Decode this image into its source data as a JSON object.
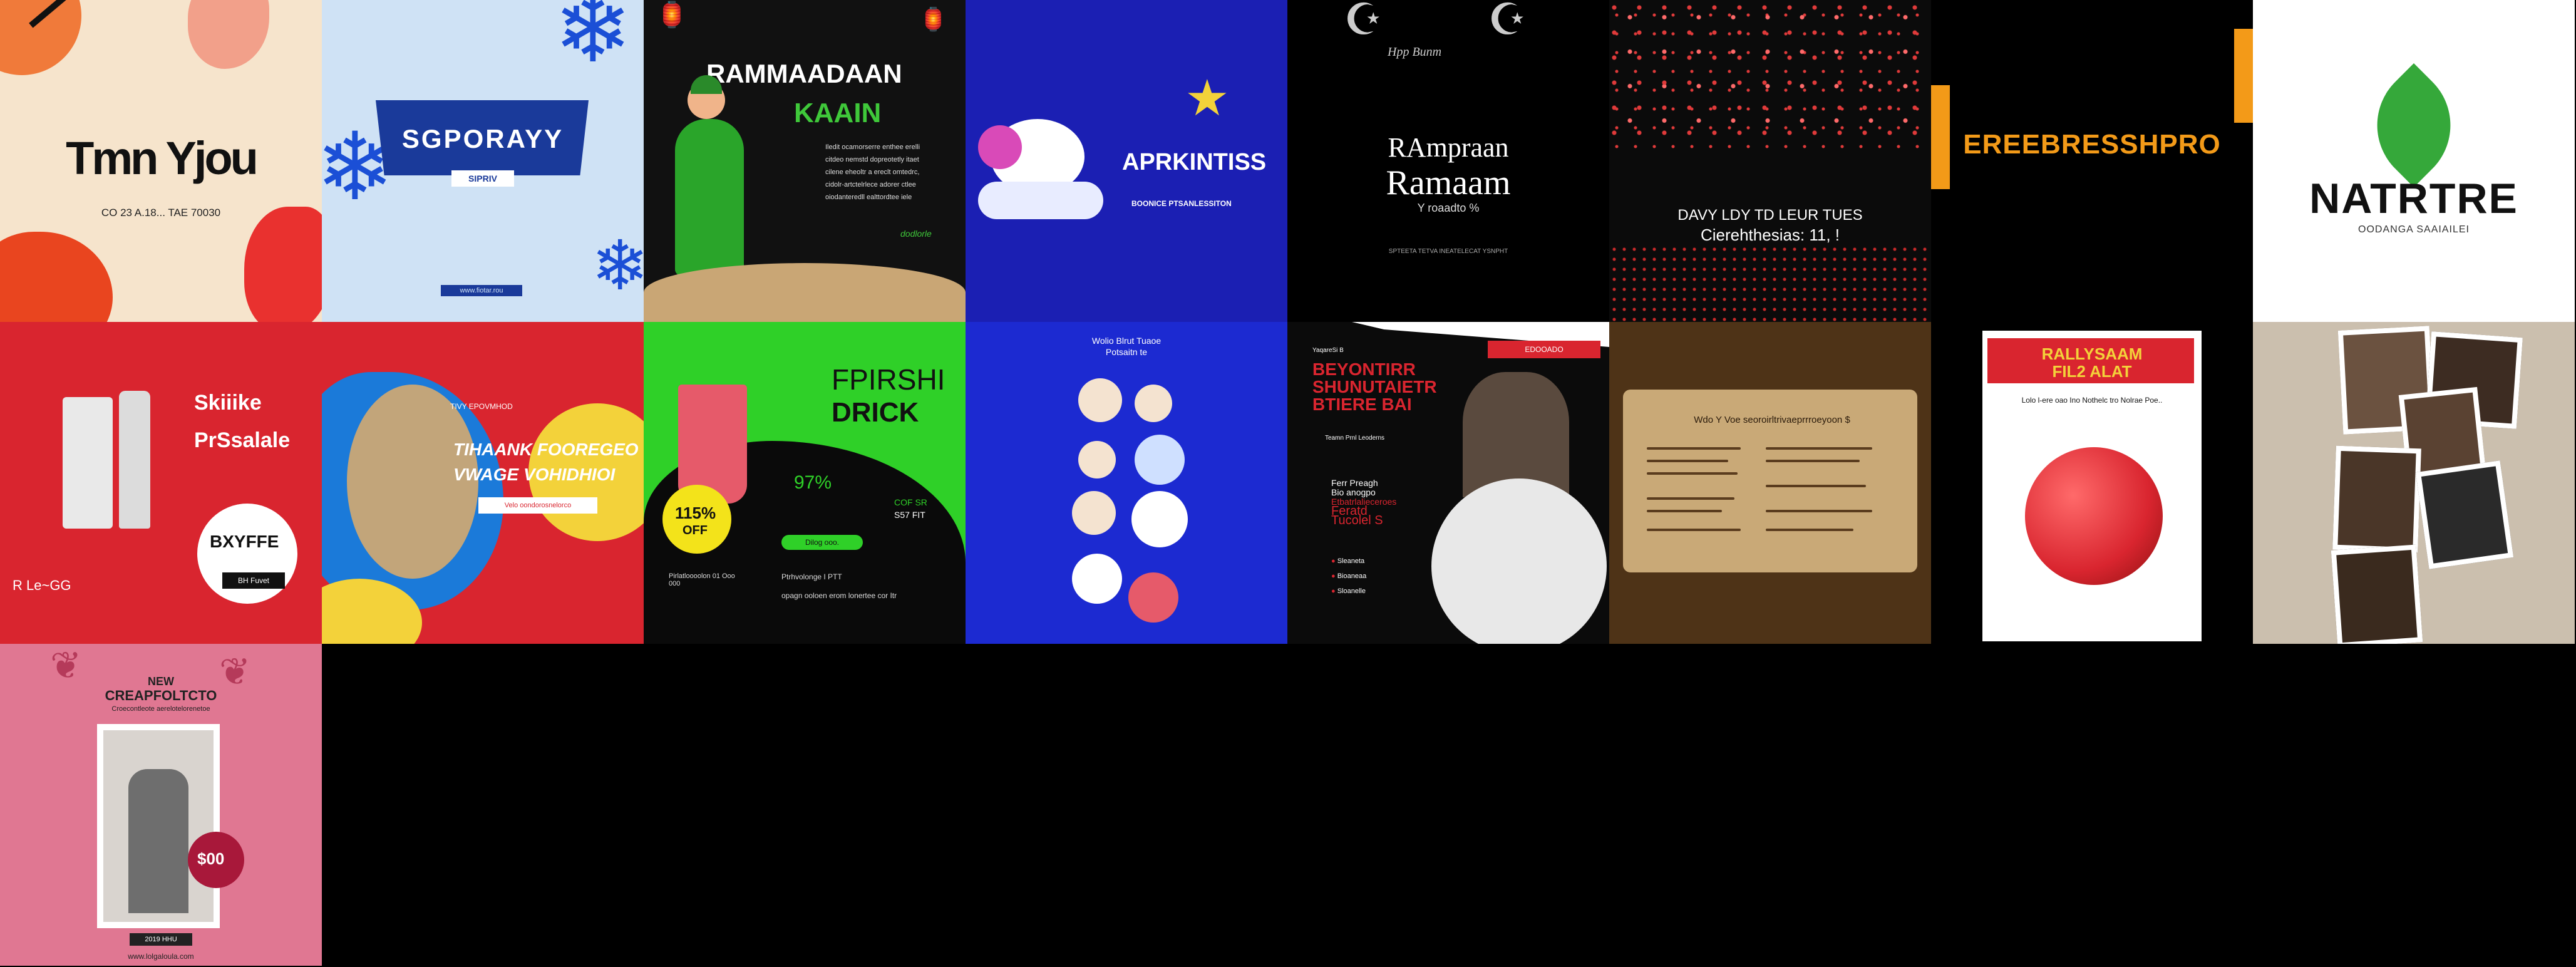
{
  "tiles": {
    "t1": {
      "headline": "Tmn Yjou",
      "subline": "CO 23 A.18... TAE 70030"
    },
    "t2": {
      "banner_title": "SGPORAYY",
      "banner_button": "SIPRIV",
      "footer": "www.fiotar.rou"
    },
    "t3": {
      "title_line1": "RAMMAADAAN",
      "title_line2": "KAAIN",
      "paragraph_lines": [
        "Iledit ocamorserre enthee erelli",
        "citdeo nemstd dopreotetly itaet",
        "cilene eheoltr a ereclt omtedrc,",
        "cidolr-artctelrlece adorer ctlee",
        "oiodanteredll ealttordtee iele"
      ],
      "signature": "dodlorle"
    },
    "t4": {
      "title": "APRKINTISS",
      "subtitle": "BOONICE PTSANLESSITON"
    },
    "t5": {
      "title_line1": "RAmpraan",
      "title_line2": "Ramaam",
      "subline": "Y roaadto %",
      "script_line": "Hpp Bunm",
      "footer": "SPTEETA TETVA INEATELECAT YSNPHT"
    },
    "t6": {
      "line1": "DAVY LDY   TD LEUR TUES",
      "line2": "Cierehthesias:  11, !"
    },
    "t7": {
      "text": "EREEBRESSHPRO"
    },
    "t8": {
      "title": "NATRTRE",
      "subtitle": "OODANGA SAAIAILEI"
    },
    "t9": {
      "title_line1": "Skiiike",
      "title_line2": "PrSsalale",
      "offer": "BXYFFE",
      "button": "BH Fuvet",
      "corner_text": "R Le~GG"
    },
    "t10": {
      "kicker": "TIVY EPOVMHOD",
      "title_line1": "TIHAANK FOOREGEO",
      "title_line2": "VWAGE VOHIDHIOI",
      "badge": "Velo oondorosnelorco"
    },
    "t11": {
      "title_line1": "FPIRSHI",
      "title_line2": "DRICK",
      "discount_value": "115%",
      "discount_label": "OFF",
      "percent": "97%",
      "side_line1": "COF SR",
      "side_line2": "S57 FIT",
      "pill": "Dilog ooo.",
      "footer_left": "Pirlatloooolon 01 Ooo 000",
      "footer_right_line1": "Ptrhvolonge  I PTT",
      "footer_right_line2": "opagn ooloen erom  lonertee cor Itr"
    },
    "t12": {
      "title_line1": "Wolio Blrut Tuaoe",
      "title_line2": "Potsaitn te"
    },
    "t13": {
      "title_line1": "BEYONTIRR",
      "title_line2": "SHUNUTAIETR",
      "title_line3": "BTIERE BAI",
      "red_tag": "EDOOADO",
      "kicker": "YaqareSi B",
      "presenter": "Teamn Prnl  Leoderns",
      "detail_line1": "Ferr  Preagh",
      "detail_line2": "Bio anogpo",
      "detail_line3": "Etbatrlalieceroes",
      "detail_line4": "Feratd",
      "detail_line5": "Tucolel  S",
      "bullets": [
        "Sleaneta",
        "Bioaneaa",
        "Sloanelle"
      ]
    },
    "t14": {
      "title": "Wdo Y Voe seoroirltrivaeprrroeyoon $"
    },
    "t15": {
      "title_line1": "RALLYSAAM",
      "title_line2": "FIL2 ALAT",
      "subline": "Lolo l-ere oao Ino Nothelc tro Nolrae Poe.."
    },
    "t17": {
      "title_line1": "NEW",
      "title_line2": "CREAPFOLTCTO",
      "subline": "Croecontleote aerelotelorenetoe",
      "price": "$00",
      "footer_tag": "2019 HHU",
      "url": "www.lolgaloula.com"
    }
  },
  "colors": {
    "t1_bg": "#f6e4cc",
    "t2_bg": "#cfe2f5",
    "t3_bg": "#111111",
    "t4_bg": "#1b1fb3",
    "t9_bg": "#d9252f",
    "t11_bg": "#2fd028",
    "t12_bg": "#1c2ad1",
    "t13_accent": "#d9252f",
    "t14_bg": "#4e3317",
    "t17_bg": "#e07792",
    "natrtre_green": "#35a83a"
  }
}
